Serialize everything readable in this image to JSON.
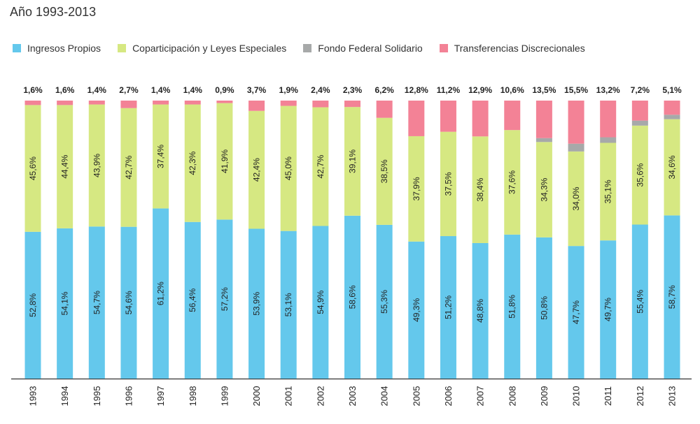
{
  "chart_data": {
    "type": "bar",
    "stacked": true,
    "normalized": true,
    "title": "Año 1993-2013",
    "legend_position": "top",
    "categories": [
      "1993",
      "1994",
      "1995",
      "1996",
      "1997",
      "1998",
      "1999",
      "2000",
      "2001",
      "2002",
      "2003",
      "2004",
      "2005",
      "2006",
      "2007",
      "2008",
      "2009",
      "2010",
      "2011",
      "2012",
      "2013"
    ],
    "series": [
      {
        "name": "Ingresos Propios",
        "color": "#64c8ec",
        "values": [
          52.8,
          54.1,
          54.7,
          54.6,
          61.2,
          56.4,
          57.2,
          53.9,
          53.1,
          54.9,
          58.6,
          55.3,
          49.3,
          51.2,
          48.8,
          51.8,
          50.8,
          47.7,
          49.7,
          55.4,
          58.7
        ],
        "labels": [
          "52,8%",
          "54,1%",
          "54,7%",
          "54,6%",
          "61,2%",
          "56,4%",
          "57,2%",
          "53,9%",
          "53,1%",
          "54,9%",
          "58,6%",
          "55,3%",
          "49,3%",
          "51,2%",
          "48,8%",
          "51,8%",
          "50,8%",
          "47,7%",
          "49,7%",
          "55,4%",
          "58,7%"
        ]
      },
      {
        "name": "Coparticipación y Leyes Especiales",
        "color": "#d6e882",
        "values": [
          45.6,
          44.4,
          43.9,
          42.7,
          37.4,
          42.3,
          41.9,
          42.4,
          45.0,
          42.7,
          39.1,
          38.5,
          37.9,
          37.5,
          38.4,
          37.6,
          34.3,
          34.0,
          35.1,
          35.6,
          34.6
        ],
        "labels": [
          "45,6%",
          "44,4%",
          "43,9%",
          "42,7%",
          "37,4%",
          "42,3%",
          "41,9%",
          "42,4%",
          "45,0%",
          "42,7%",
          "39,1%",
          "38,5%",
          "37,9%",
          "37,5%",
          "38,4%",
          "37,6%",
          "34,3%",
          "34,0%",
          "35,1%",
          "35,6%",
          "34,6%"
        ]
      },
      {
        "name": "Fondo Federal Solidario",
        "color": "#a7a9a9",
        "values": [
          0,
          0,
          0,
          0,
          0,
          0,
          0,
          0,
          0,
          0,
          0,
          0,
          0,
          0,
          0,
          0,
          1.4,
          2.8,
          2.0,
          1.8,
          1.6
        ]
      },
      {
        "name": "Transferencias Discrecionales",
        "color": "#f38296",
        "values": [
          1.6,
          1.6,
          1.4,
          2.7,
          1.4,
          1.4,
          0.9,
          3.7,
          1.9,
          2.4,
          2.3,
          6.2,
          12.8,
          11.2,
          12.9,
          10.6,
          13.5,
          15.5,
          13.2,
          7.2,
          5.1
        ],
        "labels": [
          "1,6%",
          "1,6%",
          "1,4%",
          "2,7%",
          "1,4%",
          "1,4%",
          "0,9%",
          "3,7%",
          "1,9%",
          "2,4%",
          "2,3%",
          "6,2%",
          "12,8%",
          "11,2%",
          "12,9%",
          "10,6%",
          "13,5%",
          "15,5%",
          "13,2%",
          "7,2%",
          "5,1%"
        ]
      }
    ],
    "ylim": [
      0,
      100
    ],
    "grid": false
  }
}
